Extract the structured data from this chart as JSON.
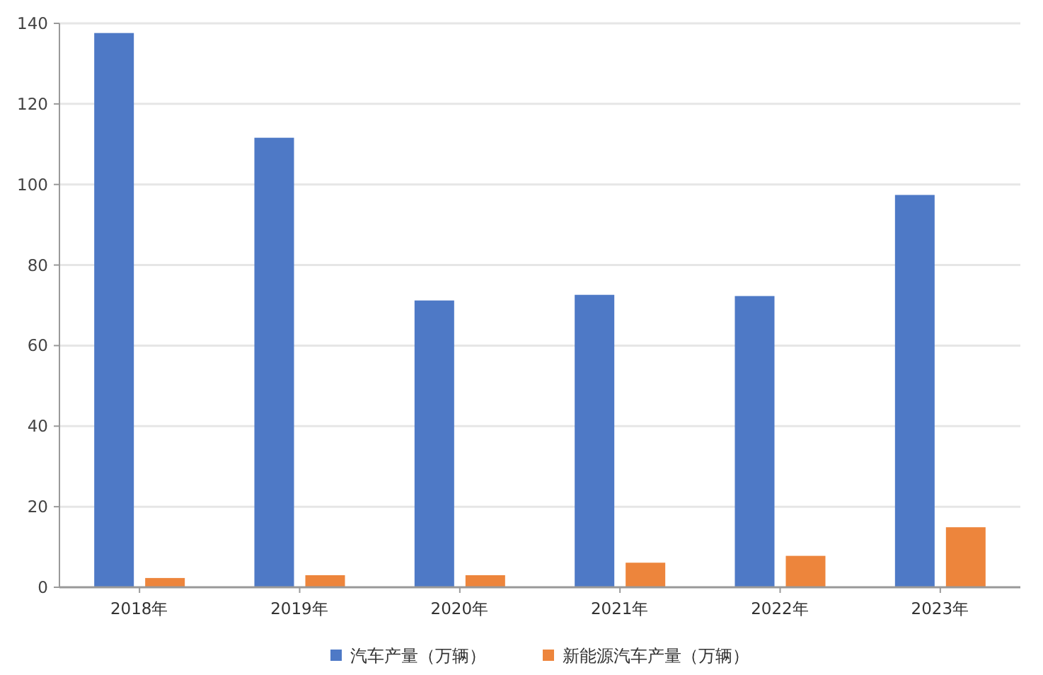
{
  "chart_data": {
    "type": "bar",
    "categories": [
      "2018年",
      "2019年",
      "2020年",
      "2021年",
      "2022年",
      "2023年"
    ],
    "series": [
      {
        "name": "汽车产量（万辆）",
        "color": "#4e79c6",
        "values": [
          137.6,
          111.6,
          71.2,
          72.6,
          72.3,
          97.4
        ]
      },
      {
        "name": "新能源汽车产量（万辆）",
        "color": "#ed853c",
        "values": [
          2.3,
          3.0,
          3.0,
          6.1,
          7.8,
          14.9
        ]
      }
    ],
    "ylim": [
      0,
      140
    ],
    "yticks": [
      0,
      20,
      40,
      60,
      80,
      100,
      120,
      140
    ],
    "grid": "y",
    "legend": "bottom"
  }
}
